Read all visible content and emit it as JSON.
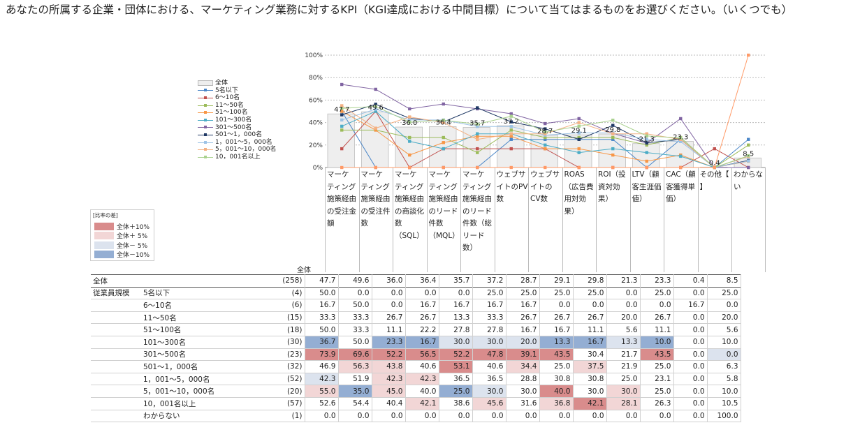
{
  "question": "あなたの所属する企業・団体における、マーケティング業務に対するKPI（KGI達成における中間目標）について当てはまるものをお選びください。（いくつでも）",
  "total_label": "全体",
  "size_group_label": "従業員規模",
  "heat_legend": {
    "title": "[比率の差]",
    "items": [
      {
        "label": "全体＋10%",
        "color": "#d98c8c"
      },
      {
        "label": "全体＋ 5%",
        "color": "#f2d6d6"
      },
      {
        "label": "全体－ 5%",
        "color": "#dce3ee"
      },
      {
        "label": "全体－10%",
        "color": "#94aed3"
      }
    ]
  },
  "chart_data": {
    "type": "bar",
    "ylim": [
      0,
      100
    ],
    "yticks": [
      "0%",
      "20%",
      "40%",
      "60%",
      "80%",
      "100%"
    ],
    "categories": [
      "マーケティング施策経由の受注金額",
      "マーケティング施策経由の受注件数",
      "マーケティング施策経由の商談化数（SQL）",
      "マーケティング施策経由のリード件数（MQL）",
      "マーケティング施策経由のリード件数（総リード数）",
      "ウェブサイトのPV数",
      "ウェブサイトのCV数",
      "ROAS（広告費用対効果）",
      "ROI（投資対効果）",
      "LTV（顧客生涯価値）",
      "CAC（顧客獲得単価）",
      "その他【】",
      "わからない"
    ],
    "category_lines": [
      [
        "マーケ",
        "ティング",
        "施策経由",
        "の受注金",
        "額"
      ],
      [
        "マーケ",
        "ティング",
        "施策経由",
        "の受注件",
        "数"
      ],
      [
        "マーケ",
        "ティング",
        "施策経由",
        "の商談化",
        "数",
        "（SQL）"
      ],
      [
        "マーケ",
        "ティング",
        "施策経由",
        "のリード",
        "件数",
        "（MQL）"
      ],
      [
        "マーケ",
        "ティング",
        "施策経由",
        "のリード",
        "件数（総",
        "リード",
        "数）"
      ],
      [
        "ウェブサ",
        "イトのPV",
        "数"
      ],
      [
        "ウェブサ",
        "イトの",
        "CV数"
      ],
      [
        "ROAS",
        "（広告費",
        "用対効",
        "果）"
      ],
      [
        "ROI（投",
        "資対効",
        "果）"
      ],
      [
        "LTV（顧",
        "客生涯価",
        "値）"
      ],
      [
        "CAC（顧",
        "客獲得単",
        "価）"
      ],
      [
        "その他【",
        "】"
      ],
      [
        "わからな",
        "い"
      ]
    ],
    "bar_labels": [
      "47.7",
      "49.6",
      "36.0",
      "36.4",
      "35.7",
      "37.2",
      "28.7",
      "29.1",
      "29.8",
      "21.3",
      "23.3",
      "0.4",
      "8.5"
    ],
    "total": {
      "name": "全体",
      "n": "(258)",
      "values": [
        47.7,
        49.6,
        36.0,
        36.4,
        35.7,
        37.2,
        28.7,
        29.1,
        29.8,
        21.3,
        23.3,
        0.4,
        8.5
      ]
    },
    "series": [
      {
        "name": "5名以下",
        "n": "(4)",
        "color": "#4a86c8",
        "values": [
          50.0,
          0.0,
          0.0,
          0.0,
          0.0,
          25.0,
          25.0,
          25.0,
          25.0,
          0.0,
          25.0,
          0.0,
          25.0
        ]
      },
      {
        "name": "6～10名",
        "n": "(6)",
        "color": "#c0504d",
        "values": [
          16.7,
          50.0,
          0.0,
          16.7,
          16.7,
          16.7,
          16.7,
          0.0,
          0.0,
          0.0,
          0.0,
          16.7,
          0.0
        ]
      },
      {
        "name": "11～50名",
        "n": "(15)",
        "color": "#9bbb59",
        "values": [
          33.3,
          33.3,
          26.7,
          26.7,
          13.3,
          33.3,
          26.7,
          26.7,
          26.7,
          20.0,
          26.7,
          0.0,
          20.0
        ]
      },
      {
        "name": "51～100名",
        "n": "(18)",
        "color": "#f79646",
        "values": [
          50.0,
          33.3,
          11.1,
          22.2,
          27.8,
          27.8,
          16.7,
          16.7,
          11.1,
          5.6,
          11.1,
          0.0,
          5.6
        ]
      },
      {
        "name": "101～300名",
        "n": "(30)",
        "color": "#4bacc6",
        "values": [
          36.7,
          50.0,
          23.3,
          16.7,
          30.0,
          30.0,
          20.0,
          13.3,
          16.7,
          13.3,
          10.0,
          0.0,
          10.0
        ]
      },
      {
        "name": "301～500名",
        "n": "(23)",
        "color": "#8064a2",
        "values": [
          73.9,
          69.6,
          52.2,
          56.5,
          52.2,
          47.8,
          39.1,
          43.5,
          30.4,
          21.7,
          43.5,
          0.0,
          0.0
        ]
      },
      {
        "name": "501～1，000名",
        "n": "(32)",
        "color": "#1f3864",
        "values": [
          46.9,
          56.3,
          43.8,
          40.6,
          53.1,
          40.6,
          34.4,
          25.0,
          37.5,
          21.9,
          25.0,
          0.0,
          6.3
        ]
      },
      {
        "name": "1，001～5，000名",
        "n": "(52)",
        "color": "#9dc3e6",
        "values": [
          42.3,
          51.9,
          42.3,
          42.3,
          36.5,
          36.5,
          28.8,
          30.8,
          30.8,
          25.0,
          23.1,
          0.0,
          5.8
        ]
      },
      {
        "name": "5，001～10，000名",
        "n": "(20)",
        "color": "#f4b183",
        "values": [
          55.0,
          35.0,
          45.0,
          40.0,
          25.0,
          30.0,
          30.0,
          40.0,
          30.0,
          30.0,
          25.0,
          0.0,
          10.0
        ]
      },
      {
        "name": "10，001名以上",
        "n": "(57)",
        "color": "#a9d18e",
        "values": [
          52.6,
          54.4,
          40.4,
          42.1,
          38.6,
          45.6,
          31.6,
          36.8,
          42.1,
          28.1,
          26.3,
          0.0,
          10.5
        ]
      },
      {
        "name": "わからない",
        "n": "(1)",
        "color": "#ff9966",
        "values": [
          0.0,
          0.0,
          0.0,
          0.0,
          0.0,
          0.0,
          0.0,
          0.0,
          0.0,
          0.0,
          0.0,
          0.0,
          100.0
        ]
      }
    ],
    "table_values": {
      "total": [
        "47.7",
        "49.6",
        "36.0",
        "36.4",
        "35.7",
        "37.2",
        "28.7",
        "29.1",
        "29.8",
        "21.3",
        "23.3",
        "0.4",
        "8.5"
      ],
      "rows": [
        [
          "50.0",
          "0.0",
          "0.0",
          "0.0",
          "0.0",
          "25.0",
          "25.0",
          "25.0",
          "25.0",
          "0.0",
          "25.0",
          "0.0",
          "25.0"
        ],
        [
          "16.7",
          "50.0",
          "0.0",
          "16.7",
          "16.7",
          "16.7",
          "16.7",
          "0.0",
          "0.0",
          "0.0",
          "0.0",
          "16.7",
          "0.0"
        ],
        [
          "33.3",
          "33.3",
          "26.7",
          "26.7",
          "13.3",
          "33.3",
          "26.7",
          "26.7",
          "26.7",
          "20.0",
          "26.7",
          "0.0",
          "20.0"
        ],
        [
          "50.0",
          "33.3",
          "11.1",
          "22.2",
          "27.8",
          "27.8",
          "16.7",
          "16.7",
          "11.1",
          "5.6",
          "11.1",
          "0.0",
          "5.6"
        ],
        [
          "36.7",
          "50.0",
          "23.3",
          "16.7",
          "30.0",
          "30.0",
          "20.0",
          "13.3",
          "16.7",
          "13.3",
          "10.0",
          "0.0",
          "10.0"
        ],
        [
          "73.9",
          "69.6",
          "52.2",
          "56.5",
          "52.2",
          "47.8",
          "39.1",
          "43.5",
          "30.4",
          "21.7",
          "43.5",
          "0.0",
          "0.0"
        ],
        [
          "46.9",
          "56.3",
          "43.8",
          "40.6",
          "53.1",
          "40.6",
          "34.4",
          "25.0",
          "37.5",
          "21.9",
          "25.0",
          "0.0",
          "6.3"
        ],
        [
          "42.3",
          "51.9",
          "42.3",
          "42.3",
          "36.5",
          "36.5",
          "28.8",
          "30.8",
          "30.8",
          "25.0",
          "23.1",
          "0.0",
          "5.8"
        ],
        [
          "55.0",
          "35.0",
          "45.0",
          "40.0",
          "25.0",
          "30.0",
          "30.0",
          "40.0",
          "30.0",
          "30.0",
          "25.0",
          "0.0",
          "10.0"
        ],
        [
          "52.6",
          "54.4",
          "40.4",
          "42.1",
          "38.6",
          "45.6",
          "31.6",
          "36.8",
          "42.1",
          "28.1",
          "26.3",
          "0.0",
          "10.5"
        ],
        [
          "0.0",
          "0.0",
          "0.0",
          "0.0",
          "0.0",
          "0.0",
          "0.0",
          "0.0",
          "0.0",
          "0.0",
          "0.0",
          "0.0",
          "100.0"
        ]
      ]
    },
    "legend_position": "left",
    "grid": true
  }
}
